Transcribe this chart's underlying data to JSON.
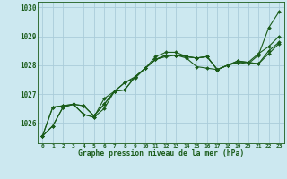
{
  "title": "Graphe pression niveau de la mer (hPa)",
  "background_color": "#cce8f0",
  "grid_color": "#aaccda",
  "line_color": "#1a5c1a",
  "xlim": [
    -0.5,
    23.5
  ],
  "ylim": [
    1025.3,
    1030.2
  ],
  "yticks": [
    1026,
    1027,
    1028,
    1029,
    1030
  ],
  "xticks": [
    0,
    1,
    2,
    3,
    4,
    5,
    6,
    7,
    8,
    9,
    10,
    11,
    12,
    13,
    14,
    15,
    16,
    17,
    18,
    19,
    20,
    21,
    22,
    23
  ],
  "series": [
    [
      1025.55,
      1025.9,
      1026.55,
      1026.65,
      1026.3,
      1026.2,
      1026.5,
      1027.1,
      1027.4,
      1027.6,
      1027.9,
      1028.2,
      1028.3,
      1028.35,
      1028.25,
      1027.95,
      1027.9,
      1027.85,
      1028.0,
      1028.1,
      1028.05,
      1028.35,
      1029.3,
      1029.85
    ],
    [
      1025.55,
      1026.55,
      1026.6,
      1026.65,
      1026.6,
      1026.25,
      1026.65,
      1027.1,
      1027.15,
      1027.6,
      1027.9,
      1028.2,
      1028.35,
      1028.35,
      1028.3,
      1028.25,
      1028.3,
      1027.85,
      1028.0,
      1028.15,
      1028.1,
      1028.05,
      1028.5,
      1028.8
    ],
    [
      1025.55,
      1026.55,
      1026.6,
      1026.65,
      1026.6,
      1026.25,
      1026.65,
      1027.1,
      1027.15,
      1027.6,
      1027.9,
      1028.2,
      1028.35,
      1028.35,
      1028.3,
      1028.25,
      1028.3,
      1027.85,
      1028.0,
      1028.15,
      1028.1,
      1028.05,
      1028.4,
      1028.75
    ],
    [
      1025.55,
      1025.9,
      1026.55,
      1026.65,
      1026.3,
      1026.2,
      1026.85,
      1027.1,
      1027.4,
      1027.55,
      1027.9,
      1028.3,
      1028.45,
      1028.45,
      1028.3,
      1028.25,
      1028.3,
      1027.85,
      1028.0,
      1028.1,
      1028.1,
      1028.4,
      1028.65,
      1029.0
    ]
  ]
}
